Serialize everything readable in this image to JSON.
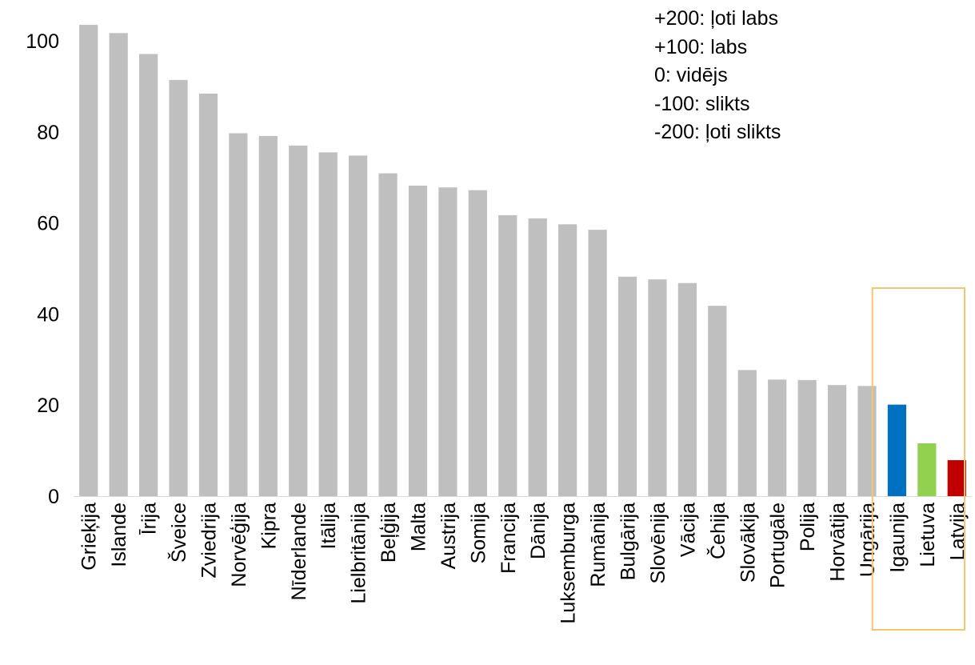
{
  "legend_notes": [
    "+200: ļoti labs",
    "+100: labs",
    "0: vidējs",
    "-100: slikts",
    "-200: ļoti slikts"
  ],
  "colors": {
    "default_bar": "#bfbfbf",
    "highlight_box": "#f7c56f",
    "Igaunija": "#0070c0",
    "Lietuva": "#92d050",
    "Latvija": "#c00000"
  },
  "chart_data": {
    "type": "bar",
    "title": "",
    "xlabel": "",
    "ylabel": "",
    "ylim": [
      0,
      105
    ],
    "yticks": [
      0,
      20,
      40,
      60,
      80,
      100
    ],
    "grid": false,
    "categories": [
      "Grieķija",
      "Islande",
      "Īrija",
      "Šveice",
      "Zviedrija",
      "Norvēģija",
      "Kipra",
      "Nīderlande",
      "Itālija",
      "Lielbritānija",
      "Beļģija",
      "Malta",
      "Austrija",
      "Somija",
      "Francija",
      "Dānija",
      "Luksemburga",
      "Rumānija",
      "Bulgārija",
      "Slovēnija",
      "Vācija",
      "Čehija",
      "Slovākija",
      "Portugāle",
      "Polija",
      "Horvātija",
      "Ungārija",
      "Igaunija",
      "Lietuva",
      "Latvija"
    ],
    "values": [
      103.5,
      101.7,
      97.1,
      91.4,
      88.4,
      79.7,
      79.1,
      77.0,
      75.5,
      74.8,
      70.9,
      68.2,
      67.8,
      67.2,
      61.7,
      61.0,
      59.7,
      58.5,
      48.2,
      47.6,
      46.8,
      41.8,
      27.7,
      25.6,
      25.5,
      24.4,
      24.2,
      20.1,
      11.6,
      7.9
    ],
    "highlighted": [
      "Igaunija",
      "Lietuva",
      "Latvija"
    ]
  }
}
